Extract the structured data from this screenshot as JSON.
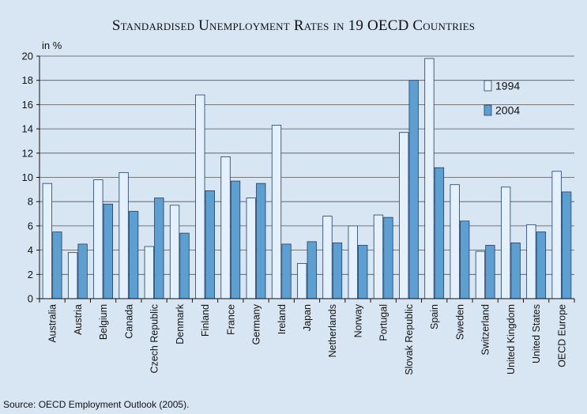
{
  "chart_data": {
    "type": "bar",
    "title": "Standardised Unemployment Rates in 19 OECD Countries",
    "ylabel": "in %",
    "ylim": [
      0,
      20
    ],
    "yticks": [
      0,
      2,
      4,
      6,
      8,
      10,
      12,
      14,
      16,
      18,
      20
    ],
    "grid": true,
    "legend_position": "top-right",
    "categories": [
      "Australia",
      "Austria",
      "Belgium",
      "Canada",
      "Czech Republic",
      "Denmark",
      "Finland",
      "France",
      "Germany",
      "Ireland",
      "Japan",
      "Netherlands",
      "Norway",
      "Portugal",
      "Slovak Republic",
      "Spain",
      "Sweden",
      "Switzerland",
      "United Kingdom",
      "United States",
      "OECD Europe"
    ],
    "series": [
      {
        "name": "1994",
        "color": "#e4f0fb",
        "values": [
          9.5,
          3.8,
          9.8,
          10.4,
          4.3,
          7.7,
          16.8,
          11.7,
          8.3,
          14.3,
          2.9,
          6.8,
          6.0,
          6.9,
          13.7,
          19.8,
          9.4,
          3.9,
          9.2,
          6.1,
          10.5
        ]
      },
      {
        "name": "2004",
        "color": "#5e9fd2",
        "values": [
          5.5,
          4.5,
          7.8,
          7.2,
          8.3,
          5.4,
          8.9,
          9.7,
          9.5,
          4.5,
          4.7,
          4.6,
          4.4,
          6.7,
          18.0,
          10.8,
          6.4,
          4.4,
          4.6,
          5.5,
          8.8
        ]
      }
    ]
  },
  "footer": {
    "source": "Source: OECD Employment Outlook (2005)."
  }
}
